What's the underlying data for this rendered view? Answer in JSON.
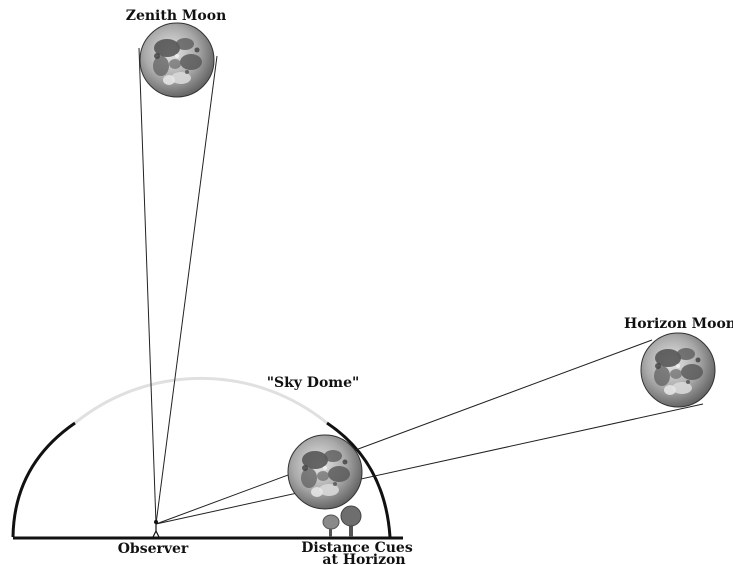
{
  "labels": {
    "zenith_moon": "Zenith Moon",
    "horizon_moon": "Horizon Moon",
    "sky_dome": "\"Sky Dome\"",
    "observer": "Observer",
    "distance_cues_line1": "Distance Cues",
    "distance_cues_line2": "at Horizon"
  },
  "colors": {
    "ink": "#111111",
    "dome_faint": "#e2e2e2",
    "moon_light": "#d6d6d6",
    "moon_dark": "#4a4a4a",
    "tree": "#7a7a7a"
  }
}
